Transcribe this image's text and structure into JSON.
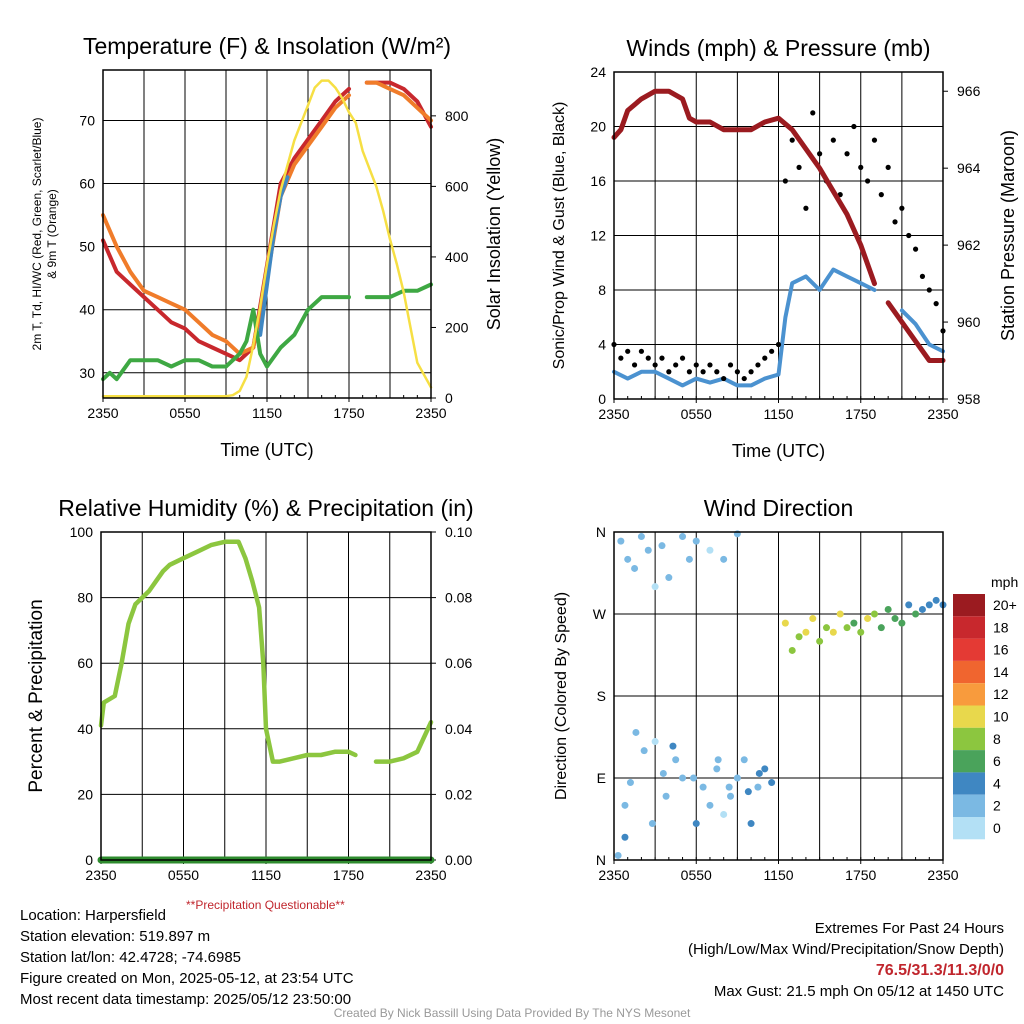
{
  "panels": {
    "temp": {
      "title": "Temperature (F) & Insolation (W/m²)",
      "xlabel": "Time (UTC)",
      "ylabel_line1": "2m T, Td, HI/WC (Red, Green, Scarlet/Blue)",
      "ylabel_line2": "& 9m T (Orange)",
      "ylabel_right": "Solar Insolation (Yellow)"
    },
    "wind": {
      "title": "Winds (mph) & Pressure (mb)",
      "xlabel": "Time (UTC)",
      "ylabel": "Sonic/Prop Wind & Gust (Blue, Black)",
      "ylabel_right": "Station Pressure (Maroon)"
    },
    "rh": {
      "title": "Relative Humidity (%) & Precipitation (in)",
      "ylabel": "Percent & Precipitation",
      "note": "**Precipitation Questionable**"
    },
    "dir": {
      "title": "Wind Direction",
      "ylabel": "Direction (Colored By Speed)",
      "legend_title": "mph",
      "legend_labels": [
        "20+",
        "18",
        "16",
        "14",
        "12",
        "10",
        "8",
        "6",
        "4",
        "2",
        "0"
      ],
      "legend_colors": [
        "#9b1b20",
        "#c8282d",
        "#e43a34",
        "#f0652f",
        "#f89b3d",
        "#e8d84c",
        "#8cc63f",
        "#4aa35b",
        "#3f87c2",
        "#7bb9e3",
        "#b3e0f5"
      ]
    }
  },
  "info": {
    "location": "Location: Harpersfield",
    "elevation": "Station elevation: 519.897 m",
    "latlon": "Station lat/lon: 42.4728; -74.6985",
    "created": "Figure created on Mon, 2025-05-12, at 23:54 UTC",
    "recent": "Most recent data timestamp: 2025/05/12 23:50:00",
    "extremes_title": "Extremes For Past 24 Hours",
    "extremes_sub": "(High/Low/Max Wind/Precipitation/Snow Depth)",
    "extremes_values": "76.5/31.3/11.3/0/0",
    "max_gust": "Max Gust: 21.5 mph On 05/12 at 1450 UTC",
    "credit": "Created By Nick Bassill Using Data Provided By The NYS Mesonet"
  },
  "chart_data": [
    {
      "type": "line",
      "title": "Temperature (F) & Insolation (W/m²)",
      "xlabel": "Time (UTC)",
      "x_ticks": [
        "2350",
        "0550",
        "1150",
        "1750",
        "2350"
      ],
      "y_ticks_left": [
        30,
        40,
        50,
        60,
        70
      ],
      "y_ticks_right": [
        0,
        200,
        400,
        600,
        800
      ],
      "ylim": [
        26,
        78
      ],
      "ylim_right": [
        0,
        930
      ],
      "grid": true,
      "series": [
        {
          "name": "2m T",
          "color": "#c8282d",
          "axis": "left",
          "x": [
            0,
            1,
            2,
            3,
            4,
            5,
            6,
            7,
            8,
            9,
            10,
            11,
            12,
            13,
            14,
            15,
            16,
            17,
            18,
            19,
            19.3,
            19.7,
            20,
            21,
            22,
            23,
            24
          ],
          "y": [
            51,
            46,
            44,
            42,
            40,
            38,
            37,
            35,
            34,
            33,
            32,
            34,
            47,
            60,
            64,
            67,
            70,
            73,
            75,
            null,
            76,
            76,
            76,
            76,
            75,
            73,
            69
          ]
        },
        {
          "name": "9m T",
          "color": "#f07c2a",
          "axis": "left",
          "x": [
            0,
            1,
            2,
            3,
            4,
            5,
            6,
            7,
            8,
            9,
            10,
            11,
            12,
            13,
            14,
            15,
            16,
            17,
            18,
            19,
            19.3,
            19.7,
            20,
            21,
            22,
            23,
            24
          ],
          "y": [
            55,
            50,
            46,
            43,
            42,
            41,
            40,
            38,
            36,
            35,
            33,
            34,
            45,
            58,
            63,
            66,
            69,
            72,
            74,
            null,
            76,
            76,
            76,
            75,
            74,
            72,
            70
          ]
        },
        {
          "name": "HI/WC",
          "color": "#3f87c2",
          "axis": "left",
          "x": [
            11.5,
            12,
            12.5,
            13,
            13.5
          ],
          "y": [
            36,
            44,
            52,
            58,
            61
          ]
        },
        {
          "name": "2m Td",
          "color": "#3ea843",
          "axis": "left",
          "x": [
            0,
            0.5,
            1,
            2,
            3,
            4,
            5,
            6,
            7,
            8,
            9,
            10,
            10.5,
            11,
            11.5,
            12,
            13,
            14,
            15,
            16,
            17,
            18,
            19,
            19.3,
            20,
            21,
            22,
            23,
            24
          ],
          "y": [
            29,
            30,
            29,
            32,
            32,
            32,
            31,
            32,
            32,
            31,
            31,
            33,
            35,
            40,
            33,
            31,
            34,
            36,
            40,
            42,
            42,
            42,
            null,
            42,
            42,
            42,
            43,
            43,
            44
          ]
        },
        {
          "name": "Solar",
          "color": "#f6df44",
          "axis": "right",
          "x": [
            0,
            1,
            2,
            3,
            4,
            5,
            6,
            7,
            8,
            9,
            9.5,
            10,
            10.5,
            11,
            11.5,
            12,
            12.5,
            13,
            14,
            15,
            15.5,
            16,
            16.5,
            17,
            17.5,
            18,
            18.5,
            19,
            19.5,
            20,
            20.5,
            21,
            21.5,
            22,
            22.5,
            23,
            24
          ],
          "y": [
            5,
            5,
            5,
            5,
            5,
            5,
            5,
            5,
            5,
            5,
            8,
            20,
            60,
            150,
            260,
            380,
            490,
            590,
            730,
            830,
            880,
            900,
            900,
            880,
            850,
            810,
            780,
            700,
            650,
            600,
            530,
            450,
            380,
            300,
            200,
            100,
            30
          ]
        }
      ]
    },
    {
      "type": "line",
      "title": "Winds (mph) & Pressure (mb)",
      "xlabel": "Time (UTC)",
      "x_ticks": [
        "2350",
        "0550",
        "1150",
        "1750",
        "2350"
      ],
      "y_ticks_left": [
        0,
        4,
        8,
        12,
        16,
        20,
        24
      ],
      "y_ticks_right": [
        958,
        960,
        962,
        964,
        966
      ],
      "ylim": [
        0,
        24
      ],
      "ylim_right": [
        958,
        966.5
      ],
      "grid": true,
      "series": [
        {
          "name": "Sonic/Prop Wind",
          "color": "#4b92d0",
          "axis": "left",
          "x": [
            0,
            1,
            2,
            3,
            4,
            5,
            6,
            7,
            8,
            9,
            10,
            11,
            12,
            12.5,
            13,
            14,
            15,
            16,
            17,
            18,
            19,
            20,
            21,
            22,
            23,
            24
          ],
          "y": [
            2,
            1.5,
            2,
            2,
            1.5,
            1,
            1.5,
            1.2,
            1.5,
            1,
            1,
            1.5,
            1.8,
            6,
            8.5,
            9,
            8,
            9.5,
            9,
            8.5,
            8,
            null,
            6.5,
            5.5,
            4,
            3.5
          ]
        },
        {
          "name": "Gust",
          "color": "#000000",
          "axis": "left",
          "style": "points",
          "x": [
            0,
            0.5,
            1,
            1.5,
            2,
            2.5,
            3,
            3.5,
            4,
            4.5,
            5,
            5.5,
            6,
            6.5,
            7,
            7.5,
            8,
            8.5,
            9,
            9.5,
            10,
            10.5,
            11,
            11.5,
            12,
            12.5,
            13,
            13.5,
            14,
            14.5,
            15,
            15.5,
            16,
            16.5,
            17,
            17.5,
            18,
            18.5,
            19,
            19.5,
            20,
            20.5,
            21,
            21.5,
            22,
            22.5,
            23,
            23.5,
            24
          ],
          "y": [
            4,
            3,
            3.5,
            2.5,
            3.5,
            3,
            2.5,
            3,
            2,
            2.5,
            3,
            2,
            2.5,
            2,
            2.5,
            2,
            1.5,
            2.5,
            2,
            1.5,
            2,
            2.5,
            3,
            3.5,
            4,
            16,
            19,
            17,
            14,
            21,
            18,
            16,
            19,
            15,
            18,
            20,
            17,
            16,
            19,
            15,
            17,
            13,
            14,
            12,
            11,
            9,
            8,
            7,
            5
          ]
        },
        {
          "name": "Station Pressure",
          "color": "#9b1b20",
          "axis": "right",
          "x": [
            0,
            0.5,
            1,
            2,
            3,
            4,
            5,
            5.5,
            6,
            7,
            8,
            9,
            10,
            11,
            12,
            13,
            14,
            15,
            16,
            17,
            18,
            19,
            19.5,
            20,
            21,
            22,
            23,
            24
          ],
          "y": [
            964.8,
            965,
            965.5,
            965.8,
            966,
            966,
            965.8,
            965.3,
            965.2,
            965.2,
            965,
            965,
            965,
            965.2,
            965.3,
            965,
            964.5,
            964,
            963.4,
            962.8,
            962,
            961,
            null,
            960.5,
            960,
            959.5,
            959,
            959
          ]
        }
      ]
    },
    {
      "type": "line",
      "title": "Relative Humidity (%) & Precipitation (in)",
      "x_ticks": [
        "2350",
        "0550",
        "1150",
        "1750",
        "2350"
      ],
      "y_ticks_left": [
        0,
        20,
        40,
        60,
        80,
        100
      ],
      "y_ticks_right": [
        "0.00",
        "0.02",
        "0.04",
        "0.06",
        "0.08",
        "0.10"
      ],
      "ylim": [
        0,
        100
      ],
      "ylim_right": [
        0,
        0.1
      ],
      "grid": true,
      "series": [
        {
          "name": "RH",
          "color": "#8cc63f",
          "axis": "left",
          "x": [
            0,
            0.2,
            1,
            1.5,
            2,
            2.5,
            3,
            3.5,
            4,
            4.5,
            5,
            6,
            7,
            8,
            9,
            10,
            10.5,
            11,
            11.5,
            11.8,
            12,
            12.5,
            13,
            14,
            15,
            16,
            17,
            18,
            18.5,
            19.5,
            20,
            21,
            22,
            23,
            24
          ],
          "y": [
            41,
            48,
            50,
            60,
            72,
            78,
            80,
            82,
            85,
            88,
            90,
            92,
            94,
            96,
            97,
            97,
            92,
            85,
            77,
            60,
            40,
            30,
            30,
            31,
            32,
            32,
            33,
            33,
            32,
            null,
            30,
            30,
            31,
            33,
            42
          ]
        },
        {
          "name": "Precipitation",
          "color": "#2e8b2e",
          "axis": "right",
          "x": [
            0,
            24
          ],
          "y": [
            0,
            0
          ]
        }
      ]
    },
    {
      "type": "scatter",
      "title": "Wind Direction",
      "ylabel": "Direction (Colored By Speed)",
      "x_ticks": [
        "2350",
        "0550",
        "1150",
        "1750",
        "2350"
      ],
      "y_ticks": [
        "N",
        "E",
        "S",
        "W",
        "N"
      ],
      "ylim": [
        0,
        360
      ],
      "grid": true,
      "legend": "right",
      "points_x": [
        0.5,
        1,
        1.5,
        2,
        2.5,
        3,
        3.5,
        4,
        5,
        5.5,
        6,
        7,
        8,
        9,
        0.3,
        0.8,
        1.2,
        2.2,
        3,
        3.8,
        4.5,
        5,
        6,
        6.5,
        7,
        7.5,
        8,
        8.5,
        9,
        9.5,
        10,
        10.5,
        11,
        11.5,
        12.5,
        13,
        13.5,
        14,
        14.5,
        15,
        15.5,
        16,
        16.5,
        17,
        17.5,
        18,
        18.5,
        19,
        19.5,
        20,
        20.5,
        21,
        21.5,
        22,
        22.5,
        23,
        23.5,
        24,
        0.8,
        1.6,
        3.6,
        4.3,
        2.8,
        5.8,
        7.6,
        8.4,
        9.8,
        10.6
      ],
      "points_y": [
        350,
        330,
        320,
        355,
        340,
        300,
        345,
        310,
        355,
        330,
        350,
        340,
        330,
        358,
        5,
        60,
        85,
        120,
        130,
        70,
        110,
        90,
        40,
        80,
        60,
        100,
        50,
        70,
        90,
        110,
        40,
        80,
        100,
        85,
        260,
        230,
        245,
        250,
        265,
        240,
        255,
        250,
        270,
        255,
        260,
        250,
        265,
        270,
        255,
        275,
        265,
        260,
        280,
        270,
        275,
        280,
        285,
        280,
        25,
        140,
        95,
        125,
        40,
        90,
        110,
        80,
        75,
        95
      ],
      "points_speed": [
        1,
        1,
        2,
        1,
        1,
        0,
        2,
        1,
        1,
        2,
        1,
        0,
        1,
        1,
        1,
        2,
        1,
        1,
        0,
        2,
        1,
        1,
        3,
        1,
        2,
        1,
        0,
        1,
        2,
        1,
        3,
        2,
        3,
        4,
        10,
        7,
        8,
        9,
        10,
        8,
        7,
        9,
        10,
        7,
        6,
        8,
        9,
        7,
        6,
        5,
        5,
        6,
        4,
        5,
        4,
        4,
        3,
        3,
        3,
        1,
        2,
        3,
        1,
        1,
        2,
        1,
        4,
        3
      ]
    }
  ]
}
